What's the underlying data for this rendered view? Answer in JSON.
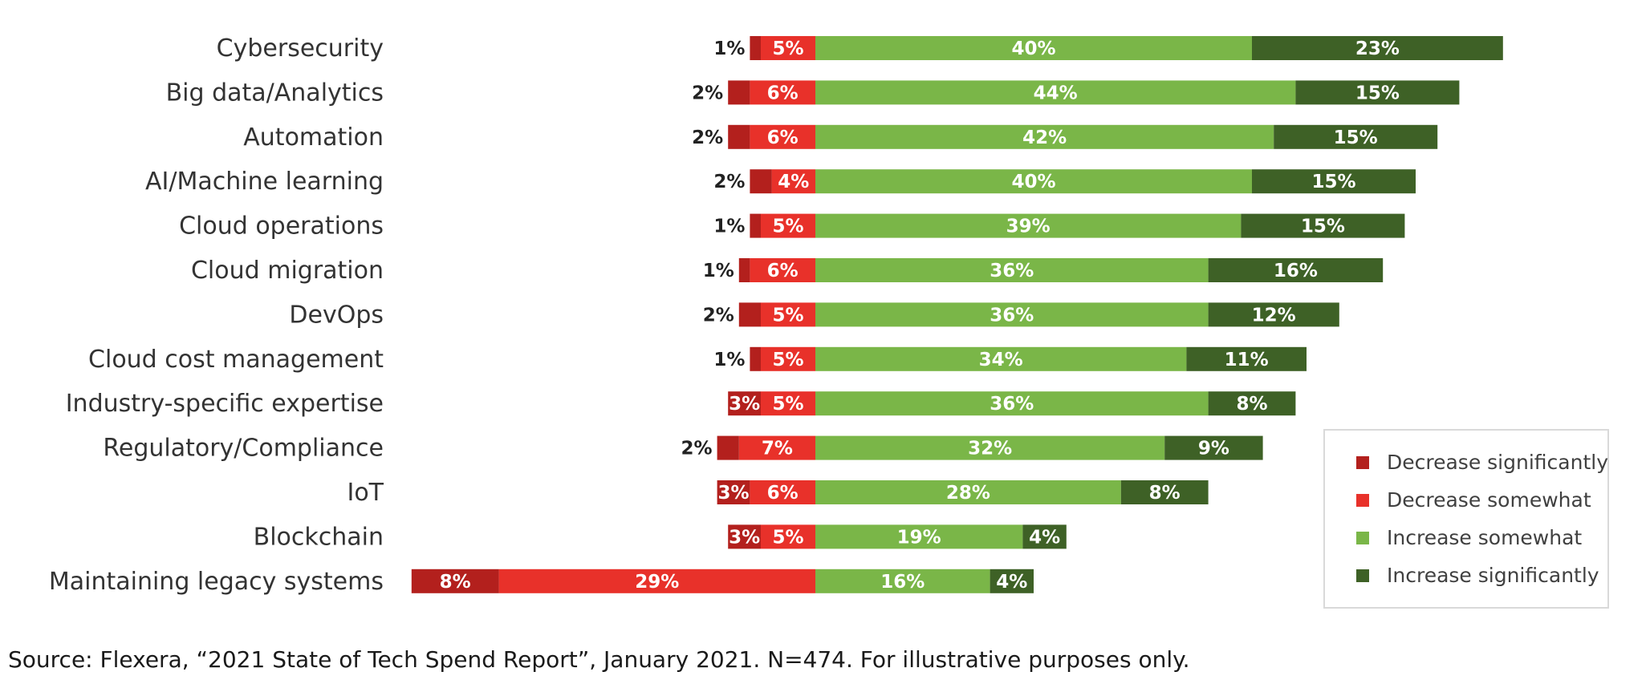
{
  "chart_data": {
    "type": "bar",
    "orientation": "horizontal",
    "stacked": "diverging",
    "title": "",
    "categories": [
      "Cybersecurity",
      "Big data/Analytics",
      "Automation",
      "AI/Machine learning",
      "Cloud operations",
      "Cloud migration",
      "DevOps",
      "Cloud cost management",
      "Industry-specific expertise",
      "Regulatory/Compliance",
      "IoT",
      "Blockchain",
      "Maintaining legacy systems"
    ],
    "series": [
      {
        "name": "Decrease significantly",
        "color": "#b3201d",
        "direction": "negative",
        "values": [
          1,
          2,
          2,
          2,
          1,
          1,
          2,
          1,
          3,
          2,
          3,
          3,
          8
        ]
      },
      {
        "name": "Decrease somewhat",
        "color": "#e8312a",
        "direction": "negative",
        "values": [
          5,
          6,
          6,
          4,
          5,
          6,
          5,
          5,
          5,
          7,
          6,
          5,
          29
        ]
      },
      {
        "name": "Increase somewhat",
        "color": "#7ab648",
        "direction": "positive",
        "values": [
          40,
          44,
          42,
          40,
          39,
          36,
          36,
          34,
          36,
          32,
          28,
          19,
          16
        ]
      },
      {
        "name": "Increase significantly",
        "color": "#3e6126",
        "direction": "positive",
        "values": [
          23,
          15,
          15,
          15,
          15,
          16,
          12,
          11,
          8,
          9,
          8,
          4,
          4
        ]
      }
    ],
    "value_suffix": "%",
    "legend_position": "bottom-right",
    "grid": false
  },
  "footnote": "Source: Flexera, “2021 State of Tech Spend Report”, January 2021. N=474. For illustrative purposes only."
}
